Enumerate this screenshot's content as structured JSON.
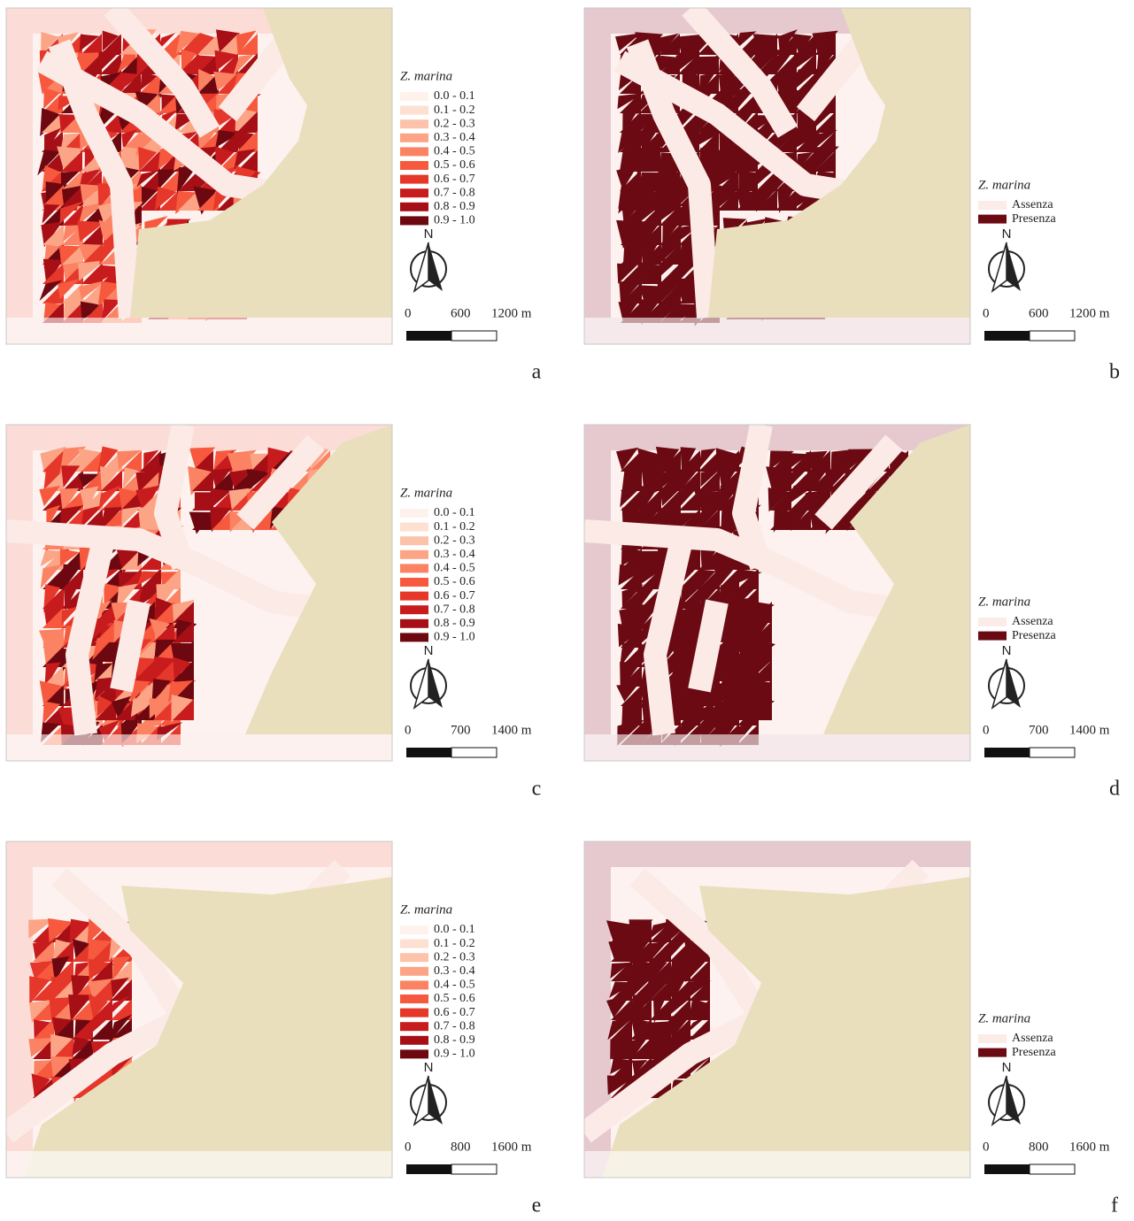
{
  "panels": [
    {
      "letter": "a",
      "legend_title": "Z. marina",
      "north": "N",
      "scale_labels": [
        "0",
        "600",
        "1200 m"
      ],
      "legend_items": [
        {
          "label": "0.0 - 0.1",
          "color": "#fff1ec"
        },
        {
          "label": "0.1 - 0.2",
          "color": "#fde0d2"
        },
        {
          "label": "0.2 - 0.3",
          "color": "#fcc3aa"
        },
        {
          "label": "0.3 - 0.4",
          "color": "#fca486"
        },
        {
          "label": "0.4 - 0.5",
          "color": "#fb8262"
        },
        {
          "label": "0.5 - 0.6",
          "color": "#f6593e"
        },
        {
          "label": "0.6 - 0.7",
          "color": "#e5372a"
        },
        {
          "label": "0.7 - 0.8",
          "color": "#c81b1d"
        },
        {
          "label": "0.8 - 0.9",
          "color": "#a50f15"
        },
        {
          "label": "0.9 - 1.0",
          "color": "#6e0810"
        }
      ]
    },
    {
      "letter": "b",
      "legend_title": "Z. marina",
      "north": "N",
      "scale_labels": [
        "0",
        "600",
        "1200 m"
      ],
      "legend_items": [
        {
          "label": "Assenza",
          "color": "#fbece8"
        },
        {
          "label": "Presenza",
          "color": "#6b0a12"
        }
      ]
    },
    {
      "letter": "c",
      "legend_title": "Z. marina",
      "north": "N",
      "scale_labels": [
        "0",
        "700",
        "1400 m"
      ],
      "legend_items": [
        {
          "label": "0.0 - 0.1",
          "color": "#fff1ec"
        },
        {
          "label": "0.1 - 0.2",
          "color": "#fde0d2"
        },
        {
          "label": "0.2 - 0.3",
          "color": "#fcc3aa"
        },
        {
          "label": "0.3 - 0.4",
          "color": "#fca486"
        },
        {
          "label": "0.4 - 0.5",
          "color": "#fb8262"
        },
        {
          "label": "0.5 - 0.6",
          "color": "#f6593e"
        },
        {
          "label": "0.6 - 0.7",
          "color": "#e5372a"
        },
        {
          "label": "0.7 - 0.8",
          "color": "#c81b1d"
        },
        {
          "label": "0.8 - 0.9",
          "color": "#a50f15"
        },
        {
          "label": "0.9 - 1.0",
          "color": "#6e0810"
        }
      ]
    },
    {
      "letter": "d",
      "legend_title": "Z. marina",
      "north": "N",
      "scale_labels": [
        "0",
        "700",
        "1400 m"
      ],
      "legend_items": [
        {
          "label": "Assenza",
          "color": "#fbece8"
        },
        {
          "label": "Presenza",
          "color": "#6b0a12"
        }
      ]
    },
    {
      "letter": "e",
      "legend_title": "Z. marina",
      "north": "N",
      "scale_labels": [
        "0",
        "800",
        "1600 m"
      ],
      "legend_items": [
        {
          "label": "0.0 - 0.1",
          "color": "#fff1ec"
        },
        {
          "label": "0.1 - 0.2",
          "color": "#fde0d2"
        },
        {
          "label": "0.2 - 0.3",
          "color": "#fcc3aa"
        },
        {
          "label": "0.3 - 0.4",
          "color": "#fca486"
        },
        {
          "label": "0.4 - 0.5",
          "color": "#fb8262"
        },
        {
          "label": "0.5 - 0.6",
          "color": "#f6593e"
        },
        {
          "label": "0.6 - 0.7",
          "color": "#e5372a"
        },
        {
          "label": "0.7 - 0.8",
          "color": "#c81b1d"
        },
        {
          "label": "0.8 - 0.9",
          "color": "#a50f15"
        },
        {
          "label": "0.9 - 1.0",
          "color": "#6e0810"
        }
      ]
    },
    {
      "letter": "f",
      "legend_title": "Z. marina",
      "north": "N",
      "scale_labels": [
        "0",
        "800",
        "1600 m"
      ],
      "legend_items": [
        {
          "label": "Assenza",
          "color": "#fbece8"
        },
        {
          "label": "Presenza",
          "color": "#6b0a12"
        }
      ]
    }
  ]
}
